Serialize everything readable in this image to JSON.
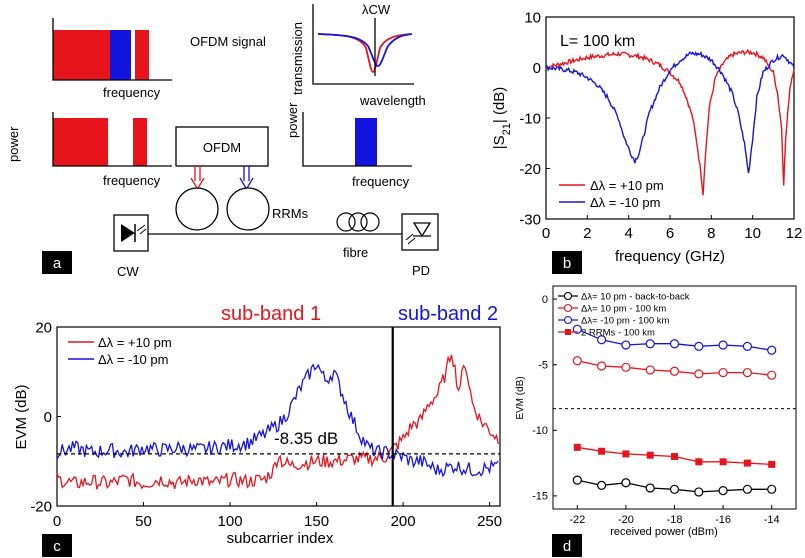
{
  "panel_letters": {
    "a": "a",
    "b": "b",
    "c": "c",
    "d": "d"
  },
  "colors": {
    "red": "#e8141b",
    "blue": "#1414e0",
    "black": "#000000"
  },
  "schematic": {
    "ofdm_signal": "OFDM signal",
    "frequency": "frequency",
    "power": "power",
    "transmission": "transmission",
    "wavelength": "wavelength",
    "lambda_cw": "λCW",
    "ofdm_box": "OFDM",
    "rrms": "RRMs",
    "fibre": "fibre",
    "cw": "CW",
    "pd": "PD"
  },
  "chart_data": [
    {
      "panel": "b",
      "type": "line",
      "annotation": "L= 100 km",
      "xlabel": "frequency (GHz)",
      "ylabel": "|S21| (dB)",
      "xlim": [
        0,
        12
      ],
      "ylim": [
        -30,
        10
      ],
      "xticks": [
        0,
        2,
        4,
        6,
        8,
        10,
        12
      ],
      "yticks": [
        10,
        0,
        -10,
        -20,
        -30
      ],
      "legend_position": "bottom-left",
      "series": [
        {
          "name": "Δλ = +10 pm",
          "color": "#e8141b",
          "x": [
            0,
            1,
            2,
            3,
            3.5,
            4,
            4.5,
            5,
            5.5,
            6,
            6.5,
            6.8,
            7.1,
            7.3,
            7.5,
            7.6,
            7.7,
            7.9,
            8.2,
            8.6,
            9,
            9.5,
            10,
            10.5,
            11,
            11.2,
            11.4,
            11.5,
            11.6,
            11.8,
            12
          ],
          "y": [
            0,
            1,
            2,
            2.5,
            2.7,
            2.5,
            2.2,
            1.5,
            0.5,
            -1,
            -3,
            -6,
            -10,
            -15,
            -21,
            -25,
            -18,
            -8,
            -2,
            1,
            2.5,
            3,
            3,
            2,
            -1,
            -5,
            -12,
            -23,
            -14,
            -4,
            0
          ]
        },
        {
          "name": "Δλ = -10 pm",
          "color": "#1414e0",
          "x": [
            0,
            0.5,
            1,
            1.5,
            2,
            2.5,
            3,
            3.5,
            3.8,
            4.1,
            4.3,
            4.5,
            4.7,
            5,
            5.5,
            6,
            6.5,
            7,
            7.5,
            8,
            8.5,
            9,
            9.3,
            9.6,
            9.8,
            10,
            10.2,
            10.5,
            11,
            11.5,
            12
          ],
          "y": [
            0,
            -0.2,
            -0.5,
            -1,
            -2,
            -3.5,
            -6,
            -10,
            -14,
            -17,
            -18.5,
            -17,
            -14,
            -9,
            -4,
            -0.5,
            1.5,
            2.8,
            2.6,
            1.5,
            -1,
            -5,
            -9,
            -15,
            -21,
            -14,
            -6,
            -1,
            1.5,
            2.5,
            0
          ]
        }
      ]
    },
    {
      "panel": "c",
      "type": "line",
      "xlabel": "subcarrier index",
      "ylabel": "EVM (dB)",
      "xlim": [
        0,
        256
      ],
      "ylim": [
        -20,
        20
      ],
      "xticks": [
        0,
        50,
        100,
        150,
        200,
        250
      ],
      "yticks": [
        20,
        0,
        -20
      ],
      "legend_position": "top-left",
      "band_labels": [
        {
          "text": "sub-band 1",
          "color": "#e8141b"
        },
        {
          "text": "sub-band 2",
          "color": "#1414e0"
        }
      ],
      "band_divider_x": 194,
      "reference_line": {
        "y": -8.35,
        "label": "-8.35 dB"
      },
      "series": [
        {
          "name": "Δλ = +10 pm",
          "color": "#e8141b",
          "x": [
            0,
            10,
            20,
            30,
            40,
            50,
            60,
            70,
            80,
            90,
            100,
            110,
            120,
            125,
            128,
            130,
            135,
            140,
            150,
            160,
            170,
            180,
            190,
            195,
            200,
            205,
            210,
            215,
            220,
            225,
            228,
            232,
            236,
            240,
            245,
            250,
            255
          ],
          "y": [
            -14,
            -15,
            -14.5,
            -15,
            -14,
            -15,
            -14,
            -15,
            -14,
            -15,
            -14,
            -14.5,
            -14,
            -12,
            -8.5,
            -10,
            -11,
            -10.5,
            -10,
            -10,
            -9.5,
            -9.5,
            -9,
            -7,
            -5,
            -2,
            -1,
            3,
            5,
            10,
            15,
            6,
            12,
            3,
            -1,
            -3,
            -5
          ]
        },
        {
          "name": "Δλ = -10 pm",
          "color": "#1414e0",
          "x": [
            0,
            10,
            20,
            30,
            40,
            50,
            60,
            70,
            80,
            90,
            100,
            110,
            120,
            130,
            135,
            140,
            145,
            150,
            155,
            160,
            165,
            170,
            175,
            180,
            185,
            190,
            195,
            200,
            205,
            210,
            215,
            220,
            230,
            240,
            250,
            255
          ],
          "y": [
            -8,
            -7,
            -8,
            -7.5,
            -8,
            -7,
            -7.5,
            -7,
            -7.5,
            -7,
            -6.5,
            -6,
            -4,
            -1,
            2,
            6,
            9,
            12,
            8,
            10,
            5,
            0,
            -4,
            -7,
            -8,
            -8,
            -8.5,
            -9,
            -10,
            -10,
            -11,
            -12,
            -11,
            -12,
            -11.5,
            -11
          ]
        }
      ]
    },
    {
      "panel": "d",
      "type": "line",
      "xlabel": "received power (dBm)",
      "ylabel": "EVM (dB)",
      "xlim": [
        -23,
        -13
      ],
      "ylim": [
        -16,
        1
      ],
      "xticks": [
        -22,
        -20,
        -18,
        -16,
        -14
      ],
      "yticks": [
        0,
        -5,
        -10,
        -15
      ],
      "legend_position": "top-left",
      "reference_line": {
        "y": -8.35
      },
      "x": [
        -22,
        -21,
        -20,
        -19,
        -18,
        -17,
        -16,
        -15,
        -14
      ],
      "series": [
        {
          "name": "Δλ= 10 pm - back-to-back",
          "color": "#000000",
          "marker": "open-circle",
          "y": [
            -13.8,
            -14.2,
            -14.0,
            -14.4,
            -14.5,
            -14.7,
            -14.6,
            -14.5,
            -14.5
          ]
        },
        {
          "name": "Δλ= 10 pm - 100 km",
          "color": "#e8141b",
          "marker": "open-circle",
          "y": [
            -4.7,
            -5.1,
            -5.2,
            -5.4,
            -5.5,
            -5.7,
            -5.6,
            -5.6,
            -5.8
          ]
        },
        {
          "name": "Δλ= -10 pm - 100 km",
          "color": "#1414e0",
          "marker": "open-circle",
          "y": [
            -2.3,
            -3.1,
            -3.5,
            -3.4,
            -3.4,
            -3.6,
            -3.5,
            -3.6,
            -3.9
          ]
        },
        {
          "name": "2 RRMs - 100 km",
          "color": "#e8141b",
          "marker": "filled-square",
          "y": [
            -11.3,
            -11.6,
            -11.8,
            -11.9,
            -12.0,
            -12.4,
            -12.4,
            -12.5,
            -12.6
          ]
        }
      ]
    }
  ]
}
